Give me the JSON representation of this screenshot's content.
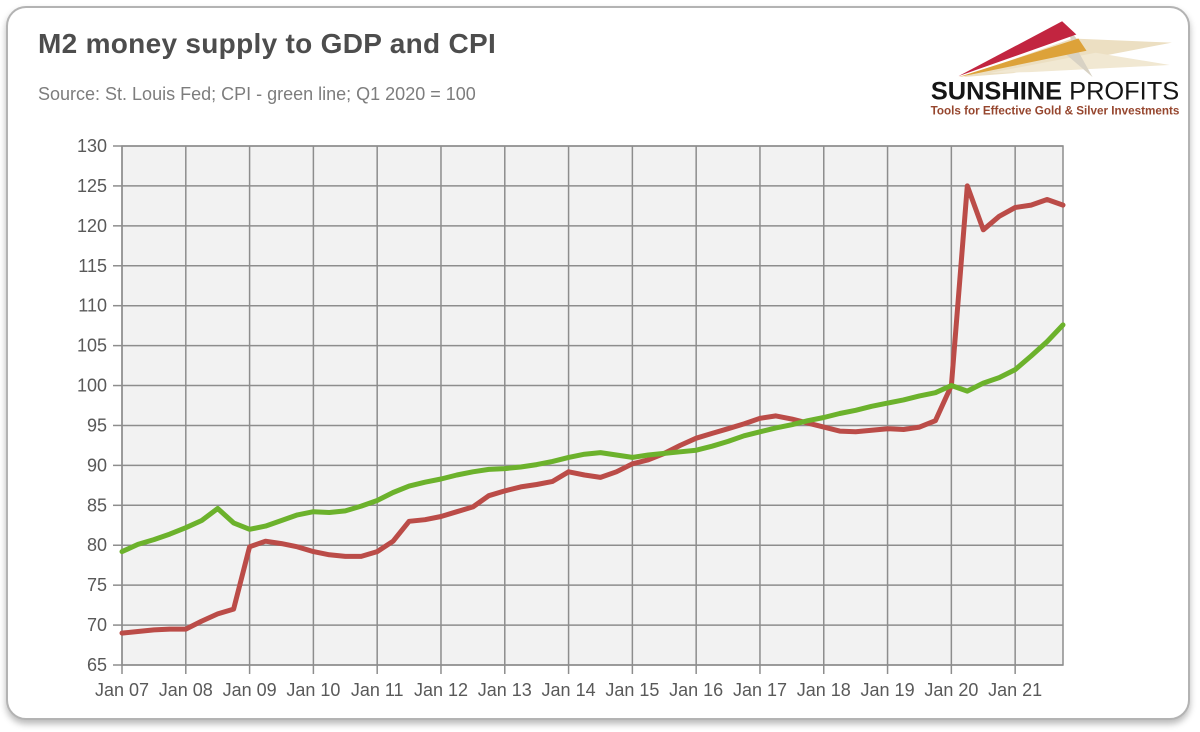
{
  "header": {
    "title": "M2 money supply to GDP and CPI",
    "subtitle": "Source: St. Louis Fed; CPI - green line; Q1 2020 = 100"
  },
  "logo": {
    "brand_primary": "SUNSHINE",
    "brand_secondary": "PROFITS",
    "tagline": "Tools for Effective Gold & Silver Investments",
    "colors": {
      "ray_red": "#c22540",
      "ray_gold": "#dda239",
      "ray_beige": "#ecdfc2",
      "ray_gray": "#d8d2c4",
      "brand_text": "#151515",
      "tagline_text": "#96462e"
    }
  },
  "chart_data": {
    "type": "line",
    "x_unit": "quarterly",
    "x_year_span": 14.75,
    "xtick_labels": [
      "Jan 07",
      "Jan 08",
      "Jan 09",
      "Jan 10",
      "Jan 11",
      "Jan 12",
      "Jan 13",
      "Jan 14",
      "Jan 15",
      "Jan 16",
      "Jan 17",
      "Jan 18",
      "Jan 19",
      "Jan 20",
      "Jan 21"
    ],
    "ylim": [
      65,
      130
    ],
    "yticks": [
      65,
      70,
      75,
      80,
      85,
      90,
      95,
      100,
      105,
      110,
      115,
      120,
      125,
      130
    ],
    "grid": true,
    "legend": "none (series identified in subtitle)",
    "plot_bg": "#f2f2f2",
    "grid_color": "#8d8d8d",
    "axis_label_color": "#595959",
    "note": "Q1 2020 = 100",
    "series": [
      {
        "name": "M2 money supply to GDP",
        "color": "#bb4c48",
        "values": [
          69.0,
          69.2,
          69.4,
          69.5,
          69.5,
          70.5,
          71.4,
          72.0,
          79.8,
          80.5,
          80.2,
          79.8,
          79.2,
          78.8,
          78.6,
          78.6,
          79.2,
          80.5,
          83.0,
          83.2,
          83.6,
          84.2,
          84.8,
          86.2,
          86.8,
          87.3,
          87.6,
          88.0,
          89.2,
          88.8,
          88.5,
          89.2,
          90.2,
          90.7,
          91.5,
          92.5,
          93.4,
          94.0,
          94.6,
          95.2,
          95.9,
          96.2,
          95.8,
          95.3,
          94.8,
          94.3,
          94.2,
          94.4,
          94.6,
          94.5,
          94.8,
          95.6,
          100.0,
          125.0,
          119.5,
          121.2,
          122.3,
          122.6,
          123.3,
          122.6
        ]
      },
      {
        "name": "CPI",
        "color": "#6cb22c",
        "values": [
          79.2,
          80.1,
          80.7,
          81.4,
          82.2,
          83.1,
          84.6,
          82.8,
          82.0,
          82.4,
          83.1,
          83.8,
          84.2,
          84.1,
          84.3,
          84.9,
          85.6,
          86.6,
          87.4,
          87.9,
          88.3,
          88.8,
          89.2,
          89.5,
          89.6,
          89.8,
          90.1,
          90.5,
          91.0,
          91.4,
          91.6,
          91.3,
          91.0,
          91.3,
          91.5,
          91.7,
          91.9,
          92.4,
          93.0,
          93.7,
          94.2,
          94.7,
          95.1,
          95.6,
          96.0,
          96.5,
          96.9,
          97.4,
          97.8,
          98.2,
          98.7,
          99.1,
          100.0,
          99.3,
          100.3,
          101.0,
          102.0,
          103.7,
          105.5,
          107.6
        ]
      }
    ]
  }
}
